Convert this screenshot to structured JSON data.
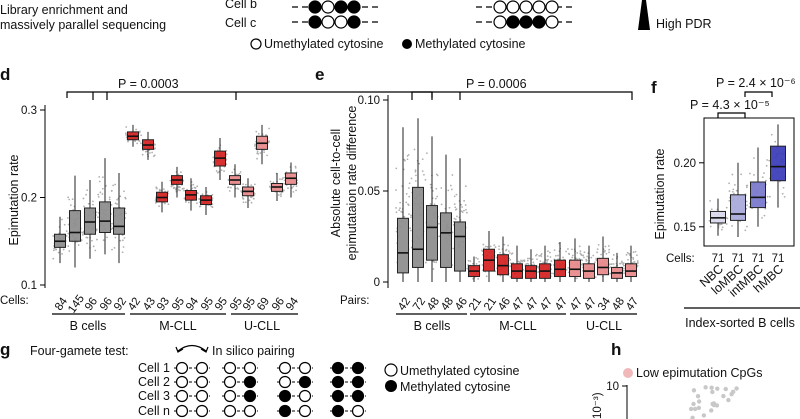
{
  "top": {
    "caption_line1": "Library enrichment and",
    "caption_line2": "massively parallel sequencing",
    "row_labels": [
      "Cell b",
      "Cell c"
    ],
    "high_pdr": "High PDR",
    "legend_unmethylated": "Umethylated cytosine",
    "legend_methylated": "Methylated cytosine"
  },
  "panel_d": {
    "letter": "d",
    "pvalue": "P = 0.0003",
    "ylabel": "Epimutation rate",
    "cells_label": "Cells:",
    "groups": [
      "B cells",
      "M-CLL",
      "U-CLL"
    ],
    "colors": {
      "B cells": "#8c8c8c",
      "M-CLL": "#d42020",
      "U-CLL": "#e8888a"
    }
  },
  "panel_e": {
    "letter": "e",
    "pvalue": "P = 0.0006",
    "ylabel_line1": "Absolute cell-to-cell",
    "ylabel_line2": "epimutataion rate difference",
    "pairs_label": "Pairs:",
    "groups": [
      "B cells",
      "M-CLL",
      "U-CLL"
    ]
  },
  "panel_f": {
    "letter": "f",
    "pvalue_top": "P = 2.4 × 10⁻⁶",
    "pvalue_bottom": "P = 4.3 × 10⁻⁵",
    "ylabel": "Epimutation rate",
    "cells_label": "Cells:",
    "group_label": "Index-sorted B cells"
  },
  "panel_g": {
    "letter": "g",
    "title": "Four-gamete test:",
    "pairing_label": "In silico pairing",
    "rows": [
      "Cell 1",
      "Cell 2",
      "Cell 3",
      "Cell n"
    ],
    "legend_unmethylated": "Umethylated cytosine",
    "legend_methylated": "Methylated cytosine"
  },
  "panel_h": {
    "letter": "h",
    "legend": "Low epimutation CpGs",
    "ytick": "10",
    "ylabel_fragment": "10⁻³)"
  },
  "chart_data": [
    {
      "type": "box",
      "title": "",
      "ylabel": "Epimutation rate",
      "ylim": [
        0.1,
        0.3
      ],
      "yticks": [
        "0.1",
        "0.2",
        "0.3"
      ],
      "categories": [
        "B cells",
        "B cells",
        "B cells",
        "B cells",
        "B cells",
        "M-CLL",
        "M-CLL",
        "M-CLL",
        "M-CLL",
        "M-CLL",
        "M-CLL",
        "M-CLL",
        "U-CLL",
        "U-CLL",
        "U-CLL",
        "U-CLL",
        "U-CLL"
      ],
      "cells": [
        "84",
        "145",
        "96",
        "96",
        "92",
        "42",
        "43",
        "93",
        "95",
        "94",
        "95",
        "95",
        "95",
        "95",
        "69",
        "96",
        "94"
      ],
      "boxes": [
        {
          "q1": 0.143,
          "median": 0.15,
          "q3": 0.158,
          "wlo": 0.125,
          "whi": 0.178
        },
        {
          "q1": 0.15,
          "median": 0.16,
          "q3": 0.185,
          "wlo": 0.12,
          "whi": 0.225
        },
        {
          "q1": 0.158,
          "median": 0.172,
          "q3": 0.188,
          "wlo": 0.13,
          "whi": 0.22
        },
        {
          "q1": 0.16,
          "median": 0.173,
          "q3": 0.195,
          "wlo": 0.135,
          "whi": 0.245
        },
        {
          "q1": 0.158,
          "median": 0.167,
          "q3": 0.188,
          "wlo": 0.125,
          "whi": 0.228
        },
        {
          "q1": 0.266,
          "median": 0.27,
          "q3": 0.275,
          "wlo": 0.258,
          "whi": 0.283
        },
        {
          "q1": 0.255,
          "median": 0.26,
          "q3": 0.266,
          "wlo": 0.243,
          "whi": 0.275
        },
        {
          "q1": 0.195,
          "median": 0.2,
          "q3": 0.206,
          "wlo": 0.183,
          "whi": 0.218
        },
        {
          "q1": 0.215,
          "median": 0.22,
          "q3": 0.225,
          "wlo": 0.2,
          "whi": 0.235
        },
        {
          "q1": 0.197,
          "median": 0.203,
          "q3": 0.208,
          "wlo": 0.185,
          "whi": 0.222
        },
        {
          "q1": 0.192,
          "median": 0.197,
          "q3": 0.202,
          "wlo": 0.18,
          "whi": 0.212
        },
        {
          "q1": 0.236,
          "median": 0.245,
          "q3": 0.253,
          "wlo": 0.22,
          "whi": 0.268
        },
        {
          "q1": 0.215,
          "median": 0.22,
          "q3": 0.225,
          "wlo": 0.2,
          "whi": 0.238
        },
        {
          "q1": 0.202,
          "median": 0.207,
          "q3": 0.212,
          "wlo": 0.188,
          "whi": 0.222
        },
        {
          "q1": 0.255,
          "median": 0.262,
          "q3": 0.27,
          "wlo": 0.238,
          "whi": 0.283
        },
        {
          "q1": 0.207,
          "median": 0.212,
          "q3": 0.216,
          "wlo": 0.196,
          "whi": 0.228
        },
        {
          "q1": 0.215,
          "median": 0.222,
          "q3": 0.228,
          "wlo": 0.2,
          "whi": 0.24
        }
      ]
    },
    {
      "type": "box",
      "title": "",
      "ylabel": "Absolute cell-to-cell epimutataion rate difference",
      "ylim": [
        0,
        0.1
      ],
      "yticks": [
        "0",
        "0.05",
        "0.10"
      ],
      "pairs": [
        "42",
        "72",
        "48",
        "48",
        "46",
        "21",
        "21",
        "46",
        "47",
        "47",
        "47",
        "47",
        "47",
        "47",
        "34",
        "48",
        "47"
      ],
      "boxes": [
        {
          "q1": 0.005,
          "median": 0.016,
          "q3": 0.035,
          "wlo": 0.0,
          "whi": 0.085
        },
        {
          "q1": 0.008,
          "median": 0.018,
          "q3": 0.052,
          "wlo": 0.0,
          "whi": 0.09
        },
        {
          "q1": 0.012,
          "median": 0.03,
          "q3": 0.042,
          "wlo": 0.0,
          "whi": 0.08
        },
        {
          "q1": 0.008,
          "median": 0.027,
          "q3": 0.038,
          "wlo": 0.0,
          "whi": 0.07
        },
        {
          "q1": 0.006,
          "median": 0.025,
          "q3": 0.033,
          "wlo": 0.0,
          "whi": 0.068
        },
        {
          "q1": 0.003,
          "median": 0.006,
          "q3": 0.009,
          "wlo": 0.0,
          "whi": 0.014
        },
        {
          "q1": 0.006,
          "median": 0.012,
          "q3": 0.018,
          "wlo": 0.0,
          "whi": 0.028
        },
        {
          "q1": 0.004,
          "median": 0.009,
          "q3": 0.015,
          "wlo": 0.0,
          "whi": 0.025
        },
        {
          "q1": 0.002,
          "median": 0.006,
          "q3": 0.01,
          "wlo": 0.0,
          "whi": 0.02
        },
        {
          "q1": 0.002,
          "median": 0.006,
          "q3": 0.009,
          "wlo": 0.0,
          "whi": 0.018
        },
        {
          "q1": 0.002,
          "median": 0.006,
          "q3": 0.01,
          "wlo": 0.0,
          "whi": 0.02
        },
        {
          "q1": 0.003,
          "median": 0.007,
          "q3": 0.012,
          "wlo": 0.0,
          "whi": 0.022
        },
        {
          "q1": 0.003,
          "median": 0.007,
          "q3": 0.012,
          "wlo": 0.0,
          "whi": 0.024
        },
        {
          "q1": 0.002,
          "median": 0.006,
          "q3": 0.01,
          "wlo": 0.0,
          "whi": 0.02
        },
        {
          "q1": 0.004,
          "median": 0.008,
          "q3": 0.013,
          "wlo": 0.0,
          "whi": 0.025
        },
        {
          "q1": 0.002,
          "median": 0.005,
          "q3": 0.008,
          "wlo": 0.0,
          "whi": 0.016
        },
        {
          "q1": 0.003,
          "median": 0.006,
          "q3": 0.01,
          "wlo": 0.0,
          "whi": 0.02
        }
      ]
    },
    {
      "type": "box",
      "title": "",
      "ylabel": "Epimutation rate",
      "ylim": [
        0.135,
        0.235
      ],
      "yticks": [
        "0.15",
        "0.20"
      ],
      "categories": [
        "NBC",
        "loMBC",
        "intMBC",
        "hMBC"
      ],
      "cells": [
        "71",
        "71",
        "71",
        "71"
      ],
      "colors": [
        "#d8d8ec",
        "#a8a8da",
        "#7676cc",
        "#3a3ab8"
      ],
      "boxes": [
        {
          "q1": 0.153,
          "median": 0.157,
          "q3": 0.162,
          "wlo": 0.143,
          "whi": 0.172
        },
        {
          "q1": 0.155,
          "median": 0.16,
          "q3": 0.175,
          "wlo": 0.142,
          "whi": 0.2
        },
        {
          "q1": 0.165,
          "median": 0.173,
          "q3": 0.185,
          "wlo": 0.15,
          "whi": 0.212
        },
        {
          "q1": 0.186,
          "median": 0.197,
          "q3": 0.213,
          "wlo": 0.165,
          "whi": 0.23
        }
      ]
    }
  ]
}
